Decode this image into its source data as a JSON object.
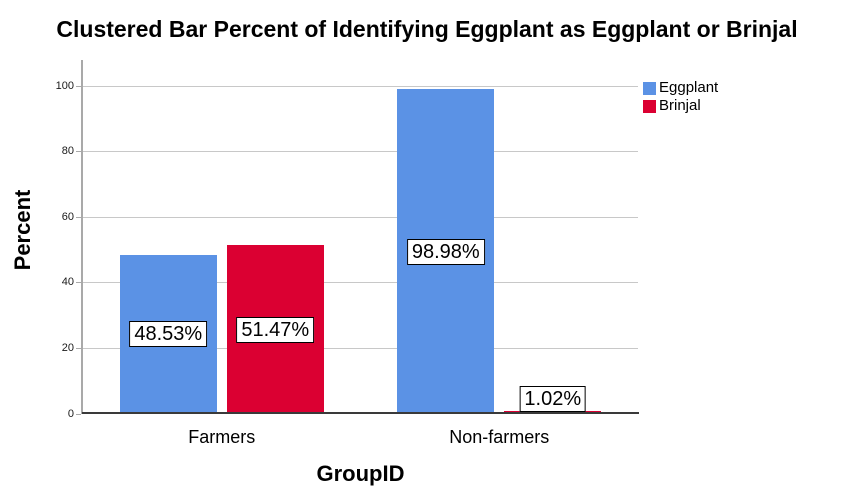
{
  "title": "Clustered Bar Percent of Identifying Eggplant as Eggplant or Brinjal",
  "chart_data": {
    "type": "bar",
    "title": "Clustered Bar Percent of Identifying Eggplant as Eggplant or Brinjal",
    "categories": [
      "Farmers",
      "Non-farmers"
    ],
    "series": [
      {
        "name": "Eggplant",
        "color": "#5b92e5",
        "values": [
          48.53,
          98.98
        ],
        "data_labels": [
          "48.53%",
          "98.98%"
        ]
      },
      {
        "name": "Brinjal",
        "color": "#db0032",
        "values": [
          51.47,
          1.02
        ],
        "data_labels": [
          "51.47%",
          "1.02%"
        ]
      }
    ],
    "xlabel": "GroupID",
    "ylabel": "Percent",
    "ylim": [
      0,
      105
    ],
    "yticks": [
      0,
      20,
      40,
      60,
      80,
      100
    ],
    "grid": "horizontal-light-gray",
    "legend_position": "top-right-outside",
    "colors": {
      "gridline": "#c8c8c8",
      "y_axis_line": "#a9a9a9",
      "x_axis_line": "#3a3a3a",
      "background": "#ffffff",
      "label_box_bg": "#ffffff",
      "label_box_border": "#000000"
    }
  }
}
